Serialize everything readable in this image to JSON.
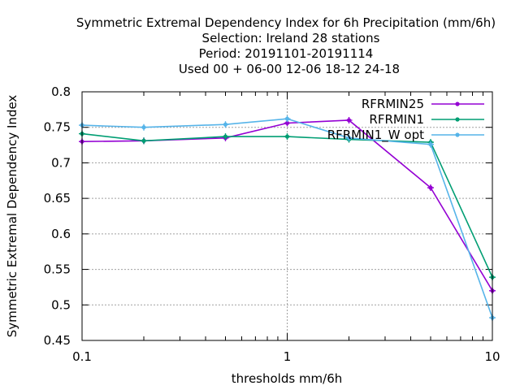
{
  "chart_data": {
    "type": "line",
    "title_lines": [
      "Symmetric Extremal Dependency Index  for 6h Precipitation (mm/6h)",
      "Selection: Ireland      28 stations",
      "Period: 20191101-20191114",
      "Used  00 + 06-00 12-06 18-12 24-18"
    ],
    "xlabel": "thresholds mm/6h",
    "ylabel": "Symmetric Extremal Dependency Index",
    "x_scale": "log",
    "xlim": [
      0.1,
      10
    ],
    "ylim": [
      0.45,
      0.8
    ],
    "x_ticks": [
      {
        "value": 0.1,
        "label": "0.1"
      },
      {
        "value": 1,
        "label": "1"
      },
      {
        "value": 10,
        "label": "10"
      }
    ],
    "y_ticks": [
      {
        "value": 0.45,
        "label": "0.45"
      },
      {
        "value": 0.5,
        "label": "0.5"
      },
      {
        "value": 0.55,
        "label": "0.55"
      },
      {
        "value": 0.6,
        "label": "0.6"
      },
      {
        "value": 0.65,
        "label": "0.65"
      },
      {
        "value": 0.7,
        "label": "0.7"
      },
      {
        "value": 0.75,
        "label": "0.75"
      },
      {
        "value": 0.8,
        "label": "0.8"
      }
    ],
    "grid": true,
    "legend_position": "top-right",
    "x": [
      0.1,
      0.2,
      0.5,
      1,
      2,
      5,
      10
    ],
    "series": [
      {
        "name": "RFRMIN25",
        "color": "#9400d3",
        "values": [
          0.73,
          0.731,
          0.735,
          0.756,
          0.76,
          0.665,
          0.52
        ]
      },
      {
        "name": "RFRMIN1",
        "color": "#009e73",
        "values": [
          0.741,
          0.731,
          0.737,
          0.737,
          0.733,
          0.729,
          0.539
        ]
      },
      {
        "name": "RFRMIN1_W opt",
        "color": "#56b4e9",
        "values": [
          0.753,
          0.75,
          0.754,
          0.762,
          0.735,
          0.726,
          0.482
        ]
      }
    ]
  }
}
